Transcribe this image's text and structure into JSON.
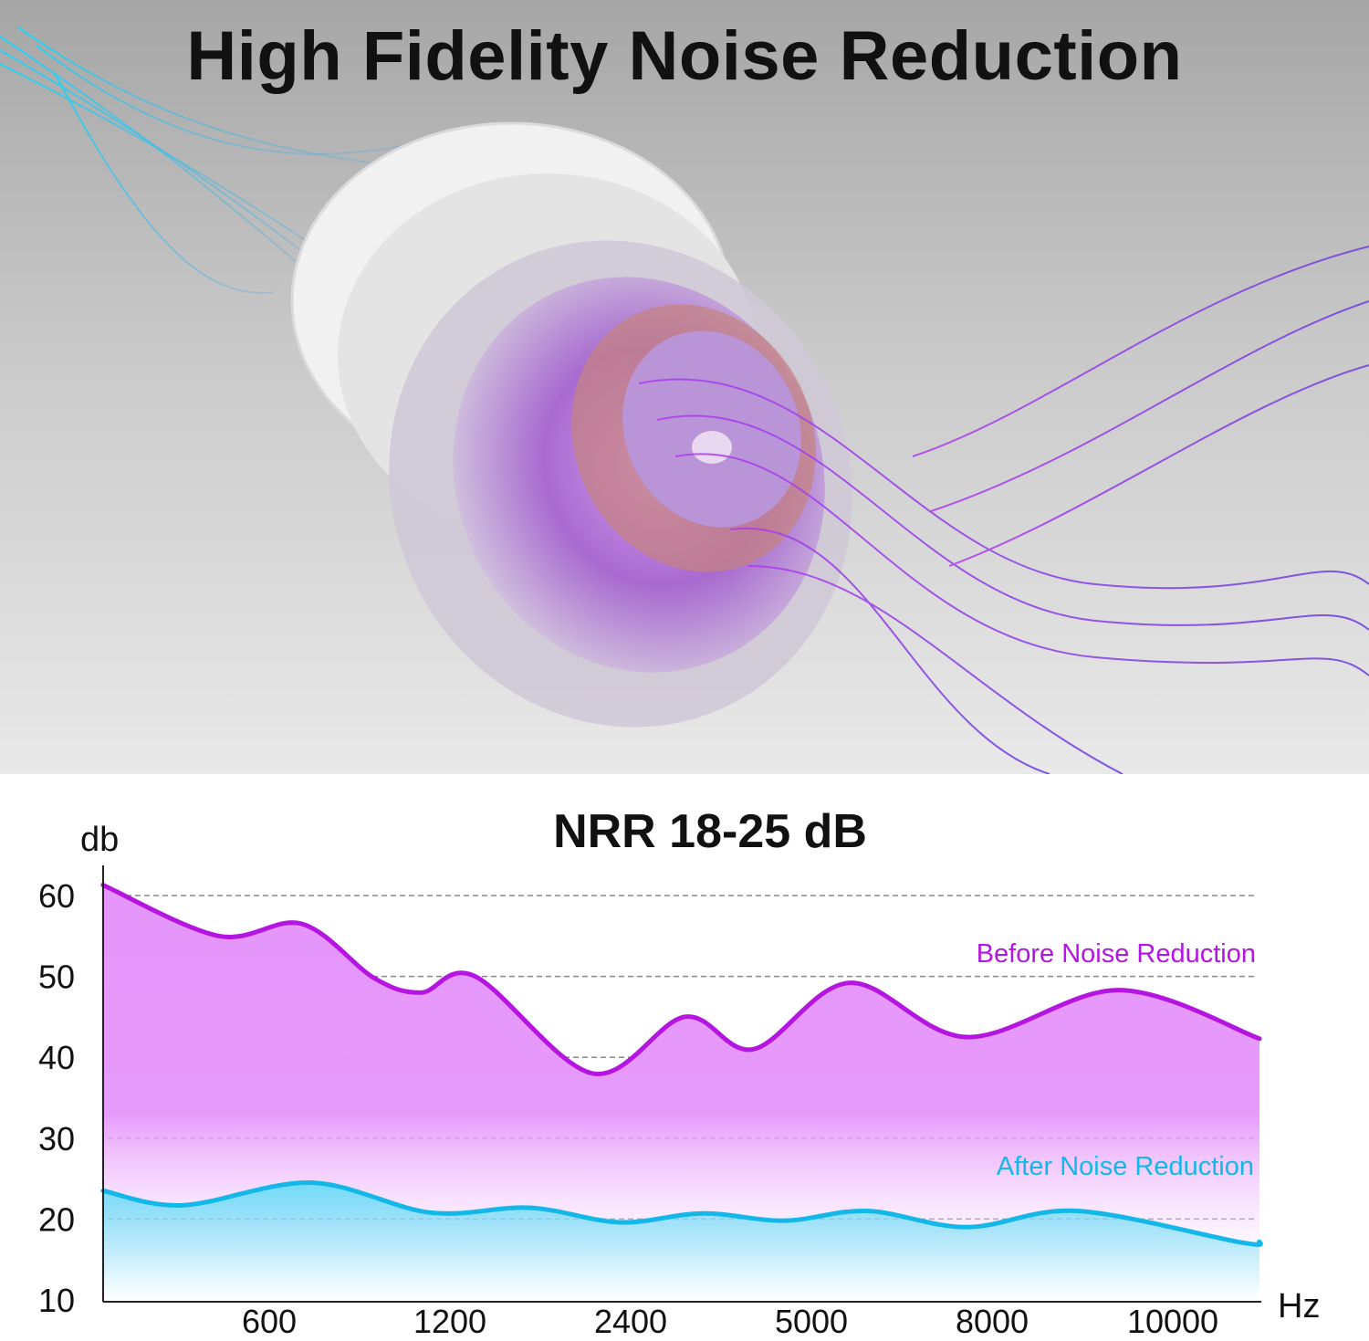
{
  "hero": {
    "title": "High Fidelity Noise Reduction"
  },
  "colors": {
    "before": "#b415e0",
    "before_fill": "#e595fb",
    "after": "#14b8e8",
    "after_fill": "#72dcf8",
    "grid": "#888888"
  },
  "chart_data": {
    "type": "area",
    "title": "NRR 18-25 dB",
    "ylabel": "db",
    "xlabel": "Hz",
    "ylim": [
      10,
      62
    ],
    "yticks": [
      10,
      20,
      30,
      40,
      50,
      60
    ],
    "gridlines": [
      20,
      30,
      40,
      50,
      60
    ],
    "x_tick_labels": [
      "600",
      "1200",
      "2400",
      "5000",
      "8000",
      "10000"
    ],
    "x_range_in_tick_index": [
      -0.92,
      5.48
    ],
    "series": [
      {
        "name": "Before Noise Reduction",
        "x_tick_index": [
          -0.92,
          -0.28,
          0.18,
          0.58,
          0.84,
          1.14,
          1.79,
          2.3,
          2.68,
          3.21,
          3.86,
          4.7,
          5.48
        ],
        "values": [
          61.3,
          55.0,
          56.5,
          49.8,
          48.0,
          50.0,
          38.0,
          45.0,
          41.0,
          49.2,
          42.5,
          48.3,
          42.3
        ]
      },
      {
        "name": "After Noise Reduction",
        "x_tick_index": [
          -0.92,
          -0.48,
          0.23,
          0.89,
          1.44,
          1.94,
          2.4,
          2.85,
          3.31,
          3.86,
          4.47,
          5.38,
          5.48
        ],
        "values": [
          23.5,
          21.7,
          24.5,
          20.8,
          21.4,
          19.6,
          20.7,
          19.8,
          21.0,
          19.0,
          21.0,
          17.1,
          17.2
        ]
      }
    ]
  }
}
